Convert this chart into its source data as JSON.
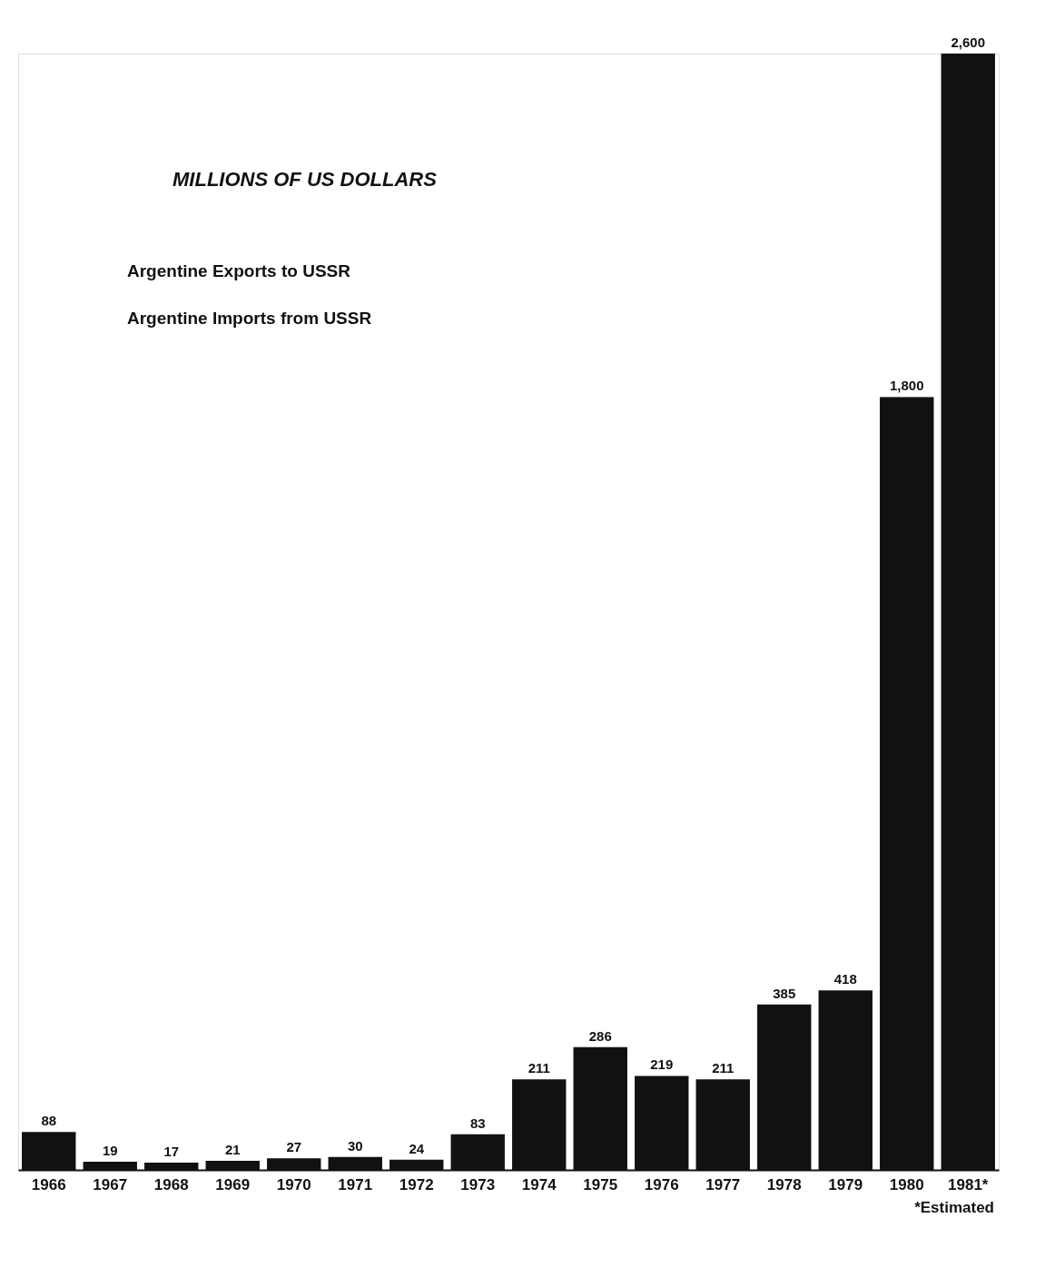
{
  "chart_data": {
    "type": "bar",
    "title": "MILLIONS OF US DOLLARS",
    "categories": [
      "1966",
      "1967",
      "1968",
      "1969",
      "1970",
      "1971",
      "1972",
      "1973",
      "1974",
      "1975",
      "1976",
      "1977",
      "1978",
      "1979",
      "1980",
      "1981*"
    ],
    "values": [
      88,
      19,
      17,
      21,
      27,
      30,
      24,
      83,
      211,
      286,
      219,
      211,
      385,
      418,
      1800,
      2600
    ],
    "value_labels": [
      "88",
      "19",
      "17",
      "21",
      "27",
      "30",
      "24",
      "83",
      "211",
      "286",
      "219",
      "211",
      "385",
      "418",
      "1,800",
      "2,600"
    ],
    "color": "#111111",
    "annotations": [
      "Argentine Exports to USSR",
      "Argentine Imports from USSR",
      "*Estimated"
    ]
  }
}
